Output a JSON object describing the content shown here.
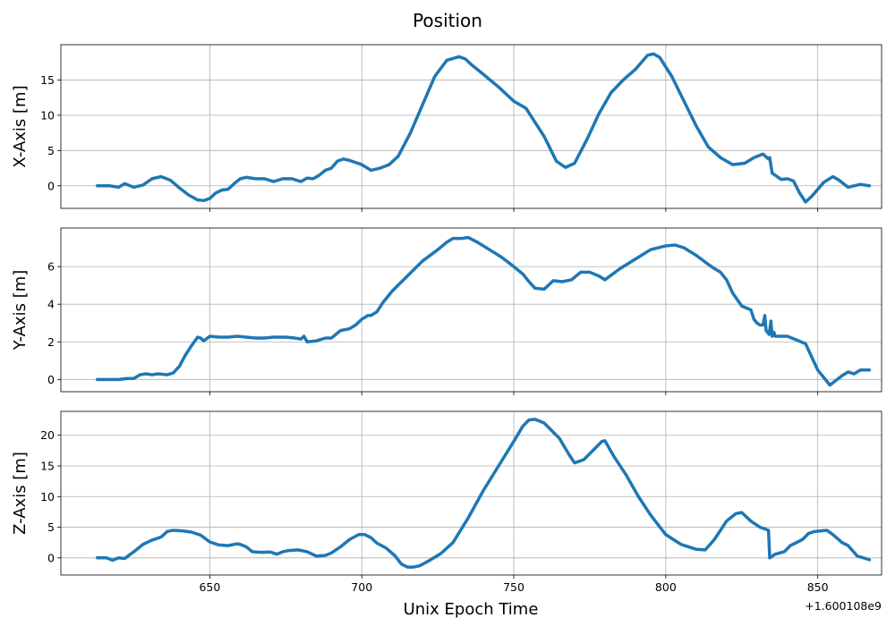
{
  "figure": {
    "title": "Position",
    "xlabel": "Unix Epoch Time",
    "x_offset_label": "+1.600108e9"
  },
  "colors": {
    "series": "#1f77b4",
    "grid": "#b0b0b0",
    "frame": "#000000"
  },
  "chart_data": [
    {
      "type": "line",
      "ylabel": "X-Axis [m]",
      "xlim": [
        601,
        871
      ],
      "ylim": [
        -3.2,
        20
      ],
      "xticks": [
        650,
        700,
        750,
        800,
        850
      ],
      "xtick_labels": [],
      "yticks": [
        0,
        5,
        10,
        15
      ],
      "ytick_labels": [
        "0",
        "5",
        "10",
        "15"
      ],
      "grid": true,
      "series": [
        {
          "x": [
            613,
            617,
            620,
            622,
            625,
            628,
            631,
            634,
            637,
            640,
            643,
            646,
            648,
            650,
            652,
            654,
            656,
            658,
            660,
            662,
            665,
            668,
            671,
            674,
            677,
            680,
            682,
            684,
            686,
            688,
            690,
            692,
            694,
            696,
            698,
            700,
            703,
            706,
            709,
            712,
            716,
            720,
            724,
            728,
            732,
            734,
            736,
            740,
            745,
            750,
            754,
            757,
            760,
            764,
            767,
            770,
            774,
            778,
            782,
            786,
            790,
            794,
            796,
            798,
            802,
            806,
            810,
            814,
            818,
            822,
            826,
            829,
            832,
            833.8,
            834.2,
            835,
            838,
            840,
            842,
            844,
            846,
            848,
            850,
            852,
            855,
            857,
            860,
            864,
            867
          ],
          "y": [
            0,
            0,
            -0.2,
            0.3,
            -0.2,
            0.1,
            1.0,
            1.3,
            0.8,
            -0.3,
            -1.3,
            -2.0,
            -2.1,
            -1.8,
            -1.0,
            -0.6,
            -0.5,
            0.3,
            1.0,
            1.2,
            1.0,
            1.0,
            0.6,
            1.0,
            1.0,
            0.6,
            1.1,
            1.0,
            1.5,
            2.2,
            2.5,
            3.5,
            3.8,
            3.6,
            3.3,
            3.0,
            2.2,
            2.5,
            3.0,
            4.2,
            7.5,
            11.5,
            15.5,
            17.8,
            18.3,
            18.0,
            17.2,
            15.8,
            14.0,
            12.0,
            11.0,
            9.0,
            7.0,
            3.5,
            2.6,
            3.2,
            6.5,
            10.2,
            13.2,
            15.0,
            16.5,
            18.5,
            18.7,
            18.2,
            15.5,
            12.0,
            8.5,
            5.5,
            4.0,
            3.0,
            3.2,
            4.0,
            4.5,
            3.8,
            4.0,
            1.8,
            0.9,
            1.0,
            0.7,
            -1.0,
            -2.3,
            -1.5,
            -0.5,
            0.5,
            1.3,
            0.8,
            -0.2,
            0.2,
            0
          ]
        }
      ]
    },
    {
      "type": "line",
      "ylabel": "Y-Axis [m]",
      "xlim": [
        601,
        871
      ],
      "ylim": [
        -0.65,
        8.05
      ],
      "xticks": [
        650,
        700,
        750,
        800,
        850
      ],
      "xtick_labels": [],
      "yticks": [
        0,
        2,
        4,
        6
      ],
      "ytick_labels": [
        "0",
        "2",
        "4",
        "6"
      ],
      "grid": true,
      "series": [
        {
          "x": [
            613,
            617,
            620,
            623,
            625,
            627,
            629,
            631,
            633,
            636,
            638,
            640,
            642,
            644,
            646,
            647,
            648,
            650,
            653,
            656,
            659,
            662,
            665,
            668,
            671,
            675,
            678,
            680,
            681,
            682,
            685,
            688,
            690,
            693,
            696,
            698,
            700,
            702,
            703,
            705,
            707,
            710,
            715,
            720,
            725,
            728,
            730,
            733,
            735,
            738,
            742,
            746,
            750,
            753,
            755,
            757,
            760,
            763,
            766,
            769,
            772,
            775,
            778,
            780,
            785,
            790,
            795,
            800,
            803,
            806,
            810,
            815,
            818,
            820,
            822,
            825,
            828,
            829,
            830,
            831,
            832,
            832.6,
            833,
            834,
            834.6,
            835,
            835.6,
            836,
            840,
            843,
            846,
            848,
            850,
            852,
            854,
            856,
            858,
            860,
            862,
            864,
            867
          ],
          "y": [
            0,
            0,
            0,
            0.05,
            0.05,
            0.25,
            0.3,
            0.25,
            0.3,
            0.25,
            0.35,
            0.7,
            1.3,
            1.8,
            2.25,
            2.2,
            2.05,
            2.3,
            2.25,
            2.25,
            2.3,
            2.25,
            2.2,
            2.2,
            2.25,
            2.25,
            2.2,
            2.15,
            2.3,
            2.0,
            2.05,
            2.2,
            2.2,
            2.6,
            2.7,
            2.9,
            3.2,
            3.4,
            3.4,
            3.6,
            4.1,
            4.7,
            5.5,
            6.3,
            6.9,
            7.3,
            7.5,
            7.5,
            7.55,
            7.3,
            6.9,
            6.5,
            6.0,
            5.6,
            5.2,
            4.85,
            4.8,
            5.25,
            5.2,
            5.3,
            5.7,
            5.7,
            5.5,
            5.3,
            5.9,
            6.4,
            6.9,
            7.1,
            7.15,
            7.0,
            6.6,
            6.0,
            5.7,
            5.3,
            4.6,
            3.9,
            3.7,
            3.2,
            3.0,
            2.9,
            2.9,
            3.4,
            2.6,
            2.4,
            3.1,
            2.3,
            2.5,
            2.3,
            2.3,
            2.1,
            1.9,
            1.2,
            0.5,
            0.1,
            -0.3,
            -0.05,
            0.2,
            0.4,
            0.3,
            0.5,
            0.5
          ]
        }
      ]
    },
    {
      "type": "line",
      "ylabel": "Z-Axis [m]",
      "xlim": [
        601,
        871
      ],
      "ylim": [
        -2.8,
        23.9
      ],
      "xticks": [
        650,
        700,
        750,
        800,
        850
      ],
      "xtick_labels": [
        "650",
        "700",
        "750",
        "800",
        "850"
      ],
      "yticks": [
        0,
        5,
        10,
        15,
        20
      ],
      "ytick_labels": [
        "0",
        "5",
        "10",
        "15",
        "20"
      ],
      "grid": true,
      "series": [
        {
          "x": [
            613,
            616,
            618,
            620,
            622,
            625,
            628,
            631,
            634,
            636,
            638,
            641,
            644,
            647,
            650,
            653,
            656,
            659,
            660,
            662,
            664,
            667,
            670,
            672,
            674,
            676,
            679,
            682,
            685,
            688,
            690,
            693,
            696,
            699,
            701,
            703,
            705,
            708,
            711,
            713,
            715,
            717,
            719,
            722,
            726,
            730,
            735,
            740,
            745,
            750,
            753,
            755,
            757,
            760,
            765,
            768,
            770,
            773,
            776,
            779,
            780,
            783,
            787,
            791,
            795,
            800,
            805,
            810,
            813,
            816,
            820,
            823,
            825,
            828,
            831,
            833.8,
            834.2,
            836,
            839,
            841,
            843,
            845,
            847,
            849,
            851,
            853,
            855,
            858,
            860,
            863,
            867
          ],
          "y": [
            0,
            0,
            -0.4,
            0,
            -0.1,
            1.0,
            2.2,
            2.9,
            3.4,
            4.3,
            4.5,
            4.4,
            4.2,
            3.7,
            2.6,
            2.1,
            2.0,
            2.3,
            2.2,
            1.8,
            1.0,
            0.9,
            0.95,
            0.6,
            1.0,
            1.2,
            1.3,
            1.0,
            0.3,
            0.4,
            0.8,
            1.8,
            3.0,
            3.8,
            3.8,
            3.3,
            2.4,
            1.6,
            0.3,
            -1.0,
            -1.5,
            -1.5,
            -1.3,
            -0.5,
            0.7,
            2.5,
            6.5,
            11.0,
            15.0,
            19.0,
            21.5,
            22.5,
            22.6,
            22.0,
            19.5,
            17.0,
            15.5,
            16.0,
            17.5,
            19.0,
            19.1,
            16.5,
            13.5,
            10.0,
            7.0,
            3.8,
            2.2,
            1.4,
            1.3,
            3.0,
            6.0,
            7.2,
            7.4,
            6.0,
            5.0,
            4.5,
            0,
            0.6,
            1.0,
            2.0,
            2.5,
            3.0,
            4.0,
            4.3,
            4.4,
            4.5,
            3.8,
            2.5,
            2.0,
            0.3,
            -0.3
          ]
        }
      ]
    }
  ]
}
